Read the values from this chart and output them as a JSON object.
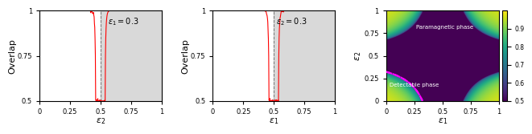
{
  "panel1": {
    "xlabel": "$\\epsilon_2$",
    "ylabel": "Overlap",
    "annotation": "$\\epsilon_1=0.3$",
    "fixed_eps1": 0.3,
    "boundary_eps2": 0.5,
    "xlim": [
      0,
      1
    ],
    "ylim": [
      0.5,
      1.0
    ],
    "xticks": [
      0,
      0.25,
      0.5,
      0.75,
      1
    ],
    "yticks": [
      0.5,
      0.75,
      1.0
    ],
    "xticklabels": [
      "0",
      "0.25",
      "0.5",
      "0.75",
      "1"
    ],
    "yticklabels": [
      "0.5",
      "0.75",
      "1"
    ]
  },
  "panel2": {
    "xlabel": "$\\epsilon_1$",
    "ylabel": "Overlap",
    "annotation": "$\\epsilon_2=0.3$",
    "fixed_eps2": 0.3,
    "boundary_eps1": 0.6,
    "xlim": [
      0,
      1
    ],
    "ylim": [
      0.5,
      1.0
    ],
    "xticks": [
      0,
      0.25,
      0.5,
      0.75,
      1
    ],
    "yticks": [
      0.5,
      0.75,
      1.0
    ],
    "xticklabels": [
      "0",
      "0.25",
      "0.5",
      "0.75",
      "1"
    ],
    "yticklabels": [
      "0.5",
      "0.75",
      "1"
    ]
  },
  "panel3": {
    "xlabel": "$\\epsilon_1$",
    "ylabel": "$\\epsilon_2$",
    "label_detectable": "Detectable phase",
    "label_paramagnetic": "Paramagnetic phase",
    "xlim": [
      0,
      1
    ],
    "ylim": [
      0,
      1
    ],
    "xticks": [
      0,
      0.25,
      0.5,
      0.75,
      1
    ],
    "yticks": [
      0,
      0.25,
      0.5,
      0.75,
      1
    ],
    "xticklabels": [
      "0",
      "0.25",
      "0.5",
      "0.75",
      "1"
    ],
    "yticklabels": [
      "0",
      "0.25",
      "0.5",
      "0.75",
      "1"
    ],
    "colorbar_ticks": [
      0.5,
      0.6,
      0.7,
      0.8,
      0.9
    ],
    "cmap": "viridis",
    "ks_threshold": 0.0,
    "snr": 4.0
  },
  "line_color": "#ff0000",
  "shade_color": "#d3d3d3",
  "shade_alpha": 0.85,
  "dashed_line_color": "#777777",
  "phase_boundary_color": "#ff00ff",
  "annotation_fontsize": 7,
  "label_fontsize": 8,
  "tick_fontsize": 6
}
